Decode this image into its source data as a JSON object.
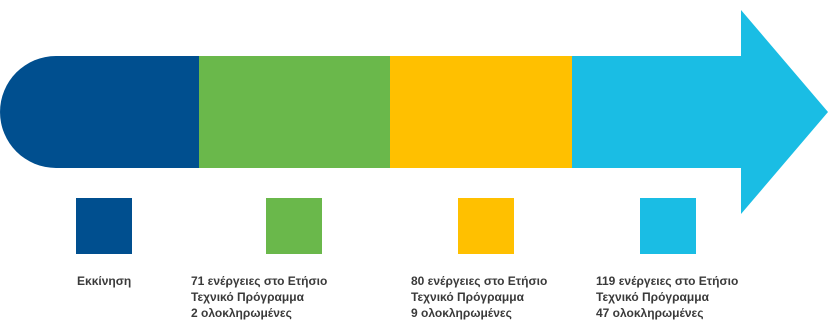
{
  "stages": [
    {
      "color": "#004f8f",
      "lines": [
        "Εκκίνηση"
      ]
    },
    {
      "color": "#6ab84b",
      "lines": [
        "71 ενέργειες στο Ετήσιο",
        "Τεχνικό Πρόγραμμα",
        "2 ολοκληρωμένες"
      ]
    },
    {
      "color": "#ffc000",
      "lines": [
        "80 ενέργειες στο Ετήσιο",
        "Τεχνικό Πρόγραμμα",
        "9 ολοκληρωμένες"
      ]
    },
    {
      "color": "#1abde4",
      "lines": [
        "119 ενέργειες στο Ετήσιο",
        "Τεχνικό Πρόγραμμα",
        "47 ολοκληρωμένες"
      ]
    }
  ]
}
